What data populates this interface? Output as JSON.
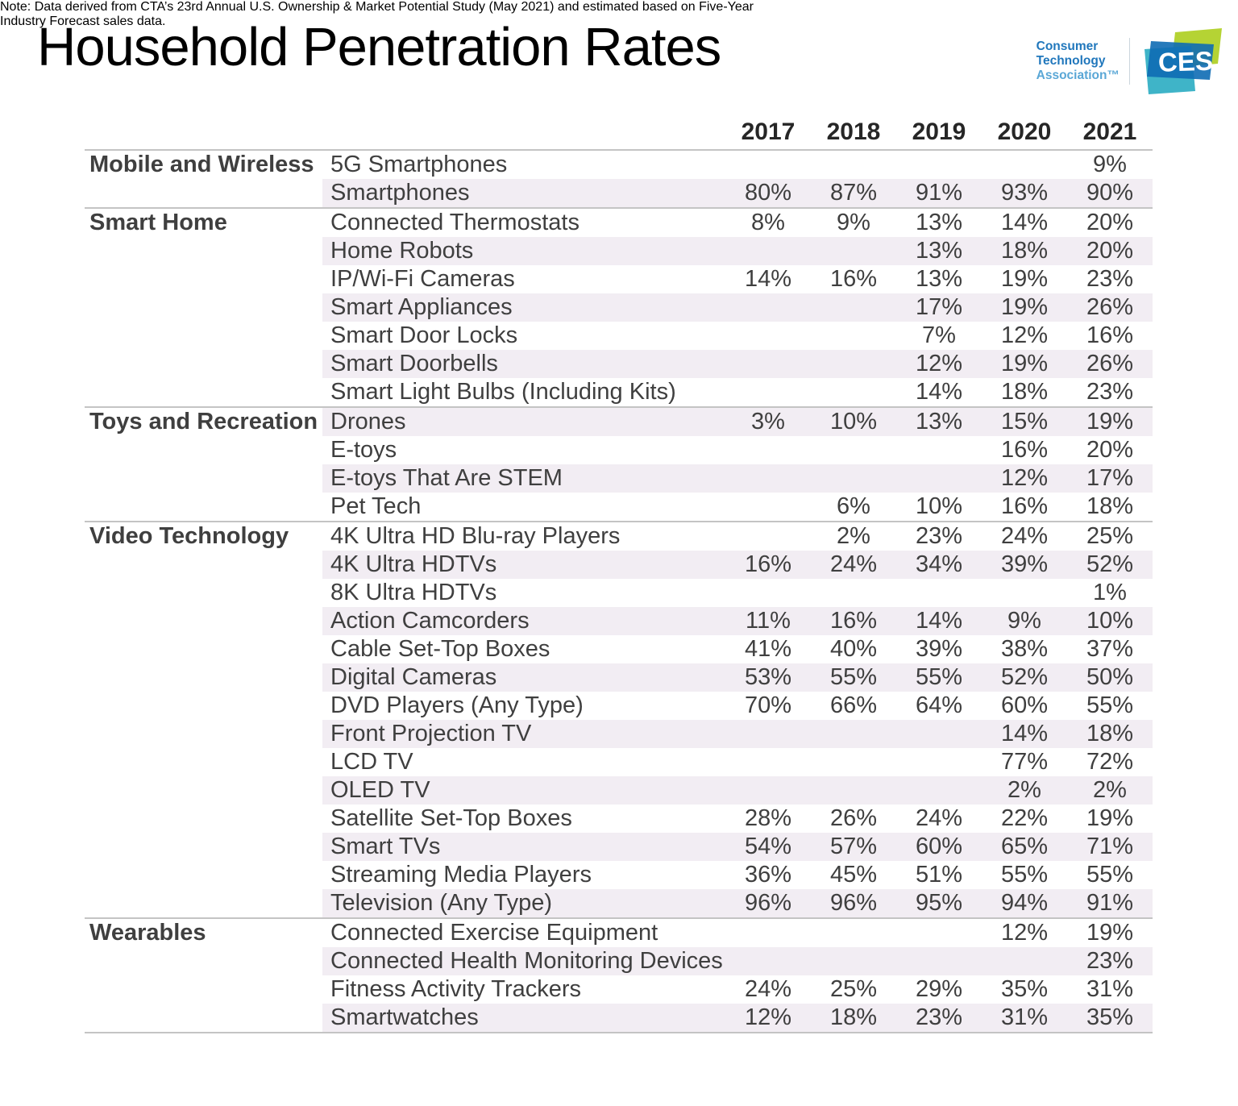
{
  "title": "Household Penetration Rates",
  "logo": {
    "org_lines": [
      "Consumer",
      "Technology",
      "Association™"
    ],
    "ces_label": "CES"
  },
  "colors": {
    "row_shade": "#f2edf3",
    "body_text": "#3f3f3f",
    "header_text": "#262626",
    "border": "#c4c4c4",
    "org_text": "#2077bc",
    "org_text_light": "#5aa7d6",
    "ces_blue": "#0e6cb4",
    "ces_teal": "#3fb4c8",
    "ces_green": "#b5d334"
  },
  "note_lines": [
    "Note: Data derived from CTA’s 23rd Annual U.S. Ownership & Market Potential Study (May 2021) and estimated based on Five-Year",
    "Industry Forecast sales data."
  ],
  "chart_data": {
    "type": "table",
    "title": "Household Penetration Rates",
    "columns": [
      "2017",
      "2018",
      "2019",
      "2020",
      "2021"
    ],
    "sections": [
      {
        "category": "Mobile and Wireless",
        "rows": [
          {
            "label": "5G Smartphones",
            "values": [
              "",
              "",
              "",
              "",
              "9%"
            ],
            "shaded": false
          },
          {
            "label": "Smartphones",
            "values": [
              "80%",
              "87%",
              "91%",
              "93%",
              "90%"
            ],
            "shaded": true
          }
        ]
      },
      {
        "category": "Smart Home",
        "rows": [
          {
            "label": "Connected Thermostats",
            "values": [
              "8%",
              "9%",
              "13%",
              "14%",
              "20%"
            ],
            "shaded": false
          },
          {
            "label": "Home Robots",
            "values": [
              "",
              "",
              "13%",
              "18%",
              "20%"
            ],
            "shaded": true
          },
          {
            "label": "IP/Wi-Fi Cameras",
            "values": [
              "14%",
              "16%",
              "13%",
              "19%",
              "23%"
            ],
            "shaded": false
          },
          {
            "label": "Smart Appliances",
            "values": [
              "",
              "",
              "17%",
              "19%",
              "26%"
            ],
            "shaded": true
          },
          {
            "label": "Smart Door Locks",
            "values": [
              "",
              "",
              "7%",
              "12%",
              "16%"
            ],
            "shaded": false
          },
          {
            "label": "Smart Doorbells",
            "values": [
              "",
              "",
              "12%",
              "19%",
              "26%"
            ],
            "shaded": true
          },
          {
            "label": "Smart Light Bulbs (Including Kits)",
            "values": [
              "",
              "",
              "14%",
              "18%",
              "23%"
            ],
            "shaded": false
          }
        ]
      },
      {
        "category": "Toys and Recreation",
        "rows": [
          {
            "label": "Drones",
            "values": [
              "3%",
              "10%",
              "13%",
              "15%",
              "19%"
            ],
            "shaded": true
          },
          {
            "label": "E-toys",
            "values": [
              "",
              "",
              "",
              "16%",
              "20%"
            ],
            "shaded": false
          },
          {
            "label": "E-toys That Are STEM",
            "values": [
              "",
              "",
              "",
              "12%",
              "17%"
            ],
            "shaded": true
          },
          {
            "label": "Pet Tech",
            "values": [
              "",
              "6%",
              "10%",
              "16%",
              "18%"
            ],
            "shaded": false
          }
        ]
      },
      {
        "category": "Video Technology",
        "rows": [
          {
            "label": "4K Ultra HD Blu-ray Players",
            "values": [
              "",
              "2%",
              "23%",
              "24%",
              "25%"
            ],
            "shaded": false
          },
          {
            "label": "4K Ultra HDTVs",
            "values": [
              "16%",
              "24%",
              "34%",
              "39%",
              "52%"
            ],
            "shaded": true
          },
          {
            "label": "8K Ultra HDTVs",
            "values": [
              "",
              "",
              "",
              "",
              "1%"
            ],
            "shaded": false
          },
          {
            "label": "Action Camcorders",
            "values": [
              "11%",
              "16%",
              "14%",
              "9%",
              "10%"
            ],
            "shaded": true
          },
          {
            "label": "Cable Set-Top Boxes",
            "values": [
              "41%",
              "40%",
              "39%",
              "38%",
              "37%"
            ],
            "shaded": false
          },
          {
            "label": "Digital Cameras",
            "values": [
              "53%",
              "55%",
              "55%",
              "52%",
              "50%"
            ],
            "shaded": true
          },
          {
            "label": "DVD Players (Any Type)",
            "values": [
              "70%",
              "66%",
              "64%",
              "60%",
              "55%"
            ],
            "shaded": false
          },
          {
            "label": "Front Projection TV",
            "values": [
              "",
              "",
              "",
              "14%",
              "18%"
            ],
            "shaded": true
          },
          {
            "label": "LCD TV",
            "values": [
              "",
              "",
              "",
              "77%",
              "72%"
            ],
            "shaded": false
          },
          {
            "label": "OLED TV",
            "values": [
              "",
              "",
              "",
              "2%",
              "2%"
            ],
            "shaded": true
          },
          {
            "label": "Satellite Set-Top Boxes",
            "values": [
              "28%",
              "26%",
              "24%",
              "22%",
              "19%"
            ],
            "shaded": false
          },
          {
            "label": "Smart TVs",
            "values": [
              "54%",
              "57%",
              "60%",
              "65%",
              "71%"
            ],
            "shaded": true
          },
          {
            "label": "Streaming Media Players",
            "values": [
              "36%",
              "45%",
              "51%",
              "55%",
              "55%"
            ],
            "shaded": false
          },
          {
            "label": "Television (Any Type)",
            "values": [
              "96%",
              "96%",
              "95%",
              "94%",
              "91%"
            ],
            "shaded": true
          }
        ]
      },
      {
        "category": "Wearables",
        "rows": [
          {
            "label": "Connected Exercise Equipment",
            "values": [
              "",
              "",
              "",
              "12%",
              "19%"
            ],
            "shaded": false
          },
          {
            "label": "Connected Health Monitoring Devices",
            "values": [
              "",
              "",
              "",
              "",
              "23%"
            ],
            "shaded": true
          },
          {
            "label": "Fitness Activity Trackers",
            "values": [
              "24%",
              "25%",
              "29%",
              "35%",
              "31%"
            ],
            "shaded": false
          },
          {
            "label": "Smartwatches",
            "values": [
              "12%",
              "18%",
              "23%",
              "31%",
              "35%"
            ],
            "shaded": true
          }
        ]
      }
    ]
  }
}
